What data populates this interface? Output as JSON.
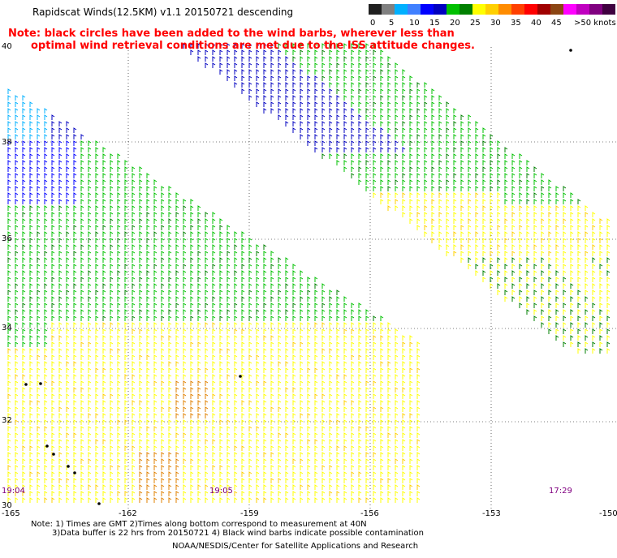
{
  "header": {
    "title": "Rapidscat Winds(12.5KM) v1.1 20150721 descending",
    "note_line1": "Note: black circles have been added to the wind barbs, wherever less than",
    "note_line2": "optimal wind retrieval conditions are met due to the ISS attitude changes."
  },
  "legend": {
    "labels": [
      "0",
      "5",
      "10",
      "15",
      "20",
      "25",
      "30",
      "35",
      "40",
      "45",
      ">50 knots"
    ],
    "colors": [
      "#202020",
      "#808080",
      "#00b0ff",
      "#0000ff",
      "#00c000",
      "#ffff00",
      "#ff8c00",
      "#ff0000",
      "#8b4513",
      "#ff00ff",
      "#800080"
    ]
  },
  "map": {
    "lat_labels": [
      "40",
      "38",
      "36",
      "34",
      "32",
      "30"
    ],
    "lon_labels": [
      "-165",
      "-162",
      "-159",
      "-156",
      "-153",
      "-150"
    ],
    "times": [
      "19:04",
      "19:05",
      "17:29"
    ]
  },
  "footer": {
    "line1": "Note: 1) Times are GMT 2)Times along bottom correspond to measurement at 40N",
    "line2": "3)Data buffer is 22 hrs from 20150721 4) Black wind barbs indicate possible contamination",
    "line3": "NOAA/NESDIS/Center for Satellite Applications and Research"
  }
}
